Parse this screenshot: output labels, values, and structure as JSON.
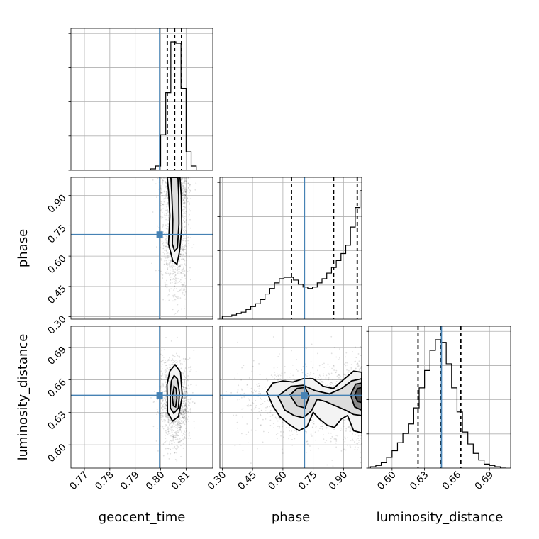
{
  "chart_data": {
    "type": "corner",
    "parameters": [
      "geocent_time",
      "phase",
      "luminosity_distance"
    ],
    "axis_labels": {
      "geocent_time": "geocent_time",
      "phase": "phase",
      "luminosity_distance": "luminosity_distance"
    },
    "ranges": {
      "geocent_time": [
        0.7647,
        0.8205
      ],
      "phase": [
        0.288,
        0.99
      ],
      "luminosity_distance": [
        0.5785,
        0.7095
      ]
    },
    "tick_values": {
      "geocent_time": [
        0.77,
        0.78,
        0.79,
        0.8,
        0.81
      ],
      "phase": [
        0.3,
        0.45,
        0.6,
        0.75,
        0.9
      ],
      "luminosity_distance": [
        0.6,
        0.63,
        0.66,
        0.69
      ]
    },
    "tick_labels": {
      "geocent_time": [
        "0.77",
        "0.78",
        "0.79",
        "0.80",
        "0.81"
      ],
      "phase": [
        "0.30",
        "0.45",
        "0.60",
        "0.75",
        "0.90"
      ],
      "luminosity_distance": [
        "0.60",
        "0.63",
        "0.66",
        "0.69"
      ]
    },
    "truths": {
      "geocent_time": 0.7996,
      "phase": 0.7066,
      "luminosity_distance": 0.6456
    },
    "quantiles": {
      "geocent_time": [
        0.8026,
        0.8055,
        0.8082
      ],
      "phase": [
        0.6425,
        0.851,
        0.968
      ],
      "luminosity_distance": [
        0.624,
        0.6448,
        0.6635
      ]
    },
    "histograms": {
      "geocent_time": {
        "edges": [
          0.796,
          0.798,
          0.8,
          0.802,
          0.804,
          0.806,
          0.808,
          0.81,
          0.812,
          0.814,
          0.816
        ],
        "values": [
          1,
          3,
          25,
          55,
          91,
          90,
          58,
          13,
          3,
          0
        ]
      },
      "phase": {
        "edges": [
          0.3,
          0.3235,
          0.347,
          0.3705,
          0.394,
          0.4175,
          0.441,
          0.4645,
          0.488,
          0.5115,
          0.535,
          0.5585,
          0.582,
          0.6055,
          0.629,
          0.6525,
          0.676,
          0.6995,
          0.723,
          0.7465,
          0.77,
          0.7935,
          0.817,
          0.8405,
          0.864,
          0.8875,
          0.911,
          0.9345,
          0.958,
          0.9815,
          1.005
        ],
        "values": [
          2,
          2,
          3,
          4,
          5,
          7,
          9,
          11,
          14,
          18,
          22,
          26,
          29,
          30,
          30,
          28,
          25,
          23,
          22,
          23,
          26,
          29,
          33,
          37,
          42,
          47,
          53,
          66,
          80,
          92
        ]
      },
      "luminosity_distance": {
        "edges": [
          0.58,
          0.585,
          0.59,
          0.595,
          0.6,
          0.605,
          0.61,
          0.615,
          0.62,
          0.625,
          0.63,
          0.635,
          0.64,
          0.645,
          0.65,
          0.655,
          0.66,
          0.665,
          0.67,
          0.675,
          0.68,
          0.685,
          0.69,
          0.695,
          0.7,
          0.705
        ],
        "values": [
          1,
          2,
          4,
          8,
          13,
          19,
          26,
          33,
          45,
          60,
          73,
          88,
          96,
          94,
          78,
          60,
          42,
          27,
          18,
          11,
          6,
          3,
          2,
          1,
          0
        ]
      }
    },
    "contours": {
      "geocent_time__phase": [
        [
          [
            0.8026,
            0.99
          ],
          [
            0.8031,
            0.92
          ],
          [
            0.8036,
            0.8
          ],
          [
            0.8031,
            0.66
          ],
          [
            0.8048,
            0.575
          ],
          [
            0.8064,
            0.56
          ],
          [
            0.8074,
            0.62
          ],
          [
            0.8083,
            0.74
          ],
          [
            0.8081,
            0.9
          ],
          [
            0.8076,
            0.99
          ]
        ],
        [
          [
            0.804,
            0.99
          ],
          [
            0.8044,
            0.9
          ],
          [
            0.8048,
            0.78
          ],
          [
            0.8046,
            0.66
          ],
          [
            0.8055,
            0.625
          ],
          [
            0.8066,
            0.64
          ],
          [
            0.8072,
            0.76
          ],
          [
            0.8071,
            0.9
          ],
          [
            0.8068,
            0.99
          ]
        ]
      ],
      "geocent_time__luminosity_distance": [
        [
          [
            0.8025,
            0.6555
          ],
          [
            0.8027,
            0.63
          ],
          [
            0.8047,
            0.622
          ],
          [
            0.807,
            0.626
          ],
          [
            0.8085,
            0.645
          ],
          [
            0.8078,
            0.667
          ],
          [
            0.8057,
            0.674
          ],
          [
            0.8036,
            0.668
          ]
        ],
        [
          [
            0.8038,
            0.6485
          ],
          [
            0.8038,
            0.634
          ],
          [
            0.8052,
            0.629
          ],
          [
            0.807,
            0.634
          ],
          [
            0.8074,
            0.648
          ],
          [
            0.8066,
            0.661
          ],
          [
            0.8053,
            0.664
          ],
          [
            0.8042,
            0.659
          ]
        ],
        [
          [
            0.8046,
            0.644
          ],
          [
            0.805,
            0.636
          ],
          [
            0.8059,
            0.635
          ],
          [
            0.8064,
            0.643
          ],
          [
            0.8061,
            0.652
          ],
          [
            0.8053,
            0.654
          ]
        ]
      ],
      "phase__luminosity_distance": [
        [
          [
            0.52,
            0.649
          ],
          [
            0.55,
            0.636
          ],
          [
            0.585,
            0.626
          ],
          [
            0.63,
            0.619
          ],
          [
            0.68,
            0.613
          ],
          [
            0.72,
            0.617
          ],
          [
            0.75,
            0.63
          ],
          [
            0.78,
            0.624
          ],
          [
            0.82,
            0.618
          ],
          [
            0.855,
            0.616
          ],
          [
            0.89,
            0.624
          ],
          [
            0.92,
            0.627
          ],
          [
            0.95,
            0.613
          ],
          [
            0.99,
            0.611
          ],
          [
            0.99,
            0.667
          ],
          [
            0.95,
            0.668
          ],
          [
            0.905,
            0.661
          ],
          [
            0.85,
            0.652
          ],
          [
            0.8,
            0.654
          ],
          [
            0.75,
            0.661
          ],
          [
            0.7,
            0.661
          ],
          [
            0.65,
            0.658
          ],
          [
            0.6,
            0.659
          ],
          [
            0.55,
            0.657
          ]
        ],
        [
          [
            0.575,
            0.645
          ],
          [
            0.61,
            0.632
          ],
          [
            0.655,
            0.627
          ],
          [
            0.7,
            0.625
          ],
          [
            0.74,
            0.631
          ],
          [
            0.77,
            0.642
          ],
          [
            0.81,
            0.64
          ],
          [
            0.86,
            0.636
          ],
          [
            0.91,
            0.632
          ],
          [
            0.95,
            0.628
          ],
          [
            0.99,
            0.627
          ],
          [
            0.99,
            0.661
          ],
          [
            0.94,
            0.659
          ],
          [
            0.89,
            0.652
          ],
          [
            0.83,
            0.647
          ],
          [
            0.76,
            0.65
          ],
          [
            0.7,
            0.655
          ],
          [
            0.64,
            0.654
          ]
        ],
        [
          [
            0.635,
            0.646
          ],
          [
            0.67,
            0.636
          ],
          [
            0.71,
            0.634
          ],
          [
            0.73,
            0.645
          ],
          [
            0.71,
            0.653
          ],
          [
            0.67,
            0.652
          ]
        ],
        [
          [
            0.935,
            0.646
          ],
          [
            0.955,
            0.635
          ],
          [
            0.99,
            0.632
          ],
          [
            0.99,
            0.657
          ],
          [
            0.96,
            0.656
          ]
        ],
        [
          [
            0.955,
            0.646
          ],
          [
            0.97,
            0.64
          ],
          [
            0.99,
            0.639
          ],
          [
            0.99,
            0.653
          ],
          [
            0.97,
            0.652
          ]
        ]
      ]
    },
    "grid": true
  }
}
